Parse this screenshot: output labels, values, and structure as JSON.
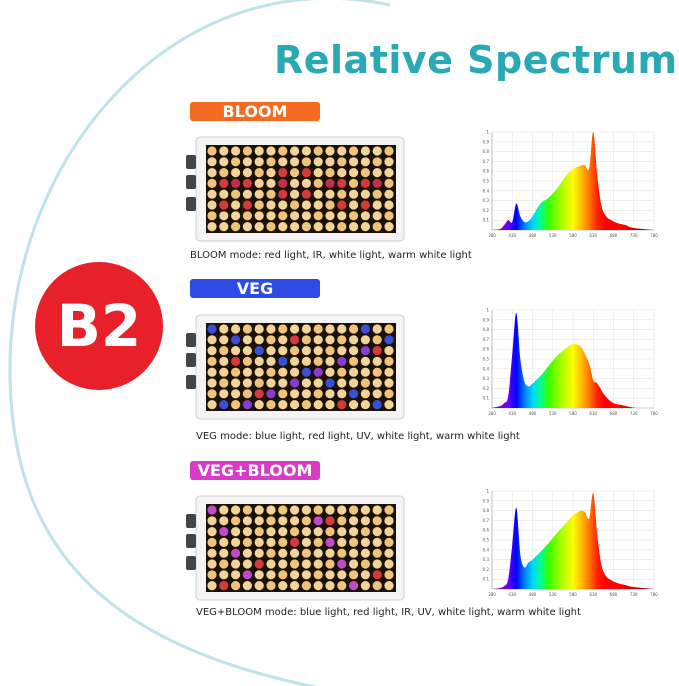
{
  "page": {
    "title": "Relative Spectrum",
    "badge": "B2",
    "accent_color": "#2aa8b3",
    "badge_color": "#e8202a"
  },
  "modes": [
    {
      "key": "bloom",
      "label": "BLOOM",
      "label_color": "#f26b21",
      "caption": "BLOOM mode: red light, IR, white light, warm white light",
      "led_pattern": "bloom"
    },
    {
      "key": "veg",
      "label": "VEG",
      "label_color": "#2f4be6",
      "caption": "VEG mode: blue light, red light, UV, white light, warm white light",
      "led_pattern": "veg"
    },
    {
      "key": "vegbloom",
      "label": "VEG+BLOOM",
      "label_color": "#d93bc9",
      "caption": "VEG+BLOOM mode: blue light, red light, IR, UV, white light, warm white light",
      "led_pattern": "vegbloom"
    }
  ],
  "chart_data": [
    {
      "type": "area",
      "x_ticks": [
        "380",
        "430",
        "480",
        "530",
        "580",
        "630",
        "680",
        "730",
        "780"
      ],
      "y_ticks": [
        "0.1",
        "0.2",
        "0.3",
        "0.4",
        "0.5",
        "0.6",
        "0.7",
        "0.8",
        "0.9",
        "1"
      ],
      "xlim": [
        380,
        780
      ],
      "ylim": [
        0,
        1
      ],
      "grid": true,
      "x": [
        380,
        400,
        410,
        420,
        430,
        440,
        450,
        460,
        470,
        480,
        500,
        520,
        540,
        560,
        580,
        600,
        610,
        620,
        630,
        640,
        650,
        660,
        670,
        690,
        710,
        730,
        780
      ],
      "values": [
        0,
        0.01,
        0.05,
        0.1,
        0.08,
        0.27,
        0.14,
        0.08,
        0.09,
        0.14,
        0.27,
        0.33,
        0.42,
        0.54,
        0.62,
        0.66,
        0.66,
        0.63,
        1.0,
        0.55,
        0.25,
        0.15,
        0.11,
        0.07,
        0.05,
        0.02,
        0
      ]
    },
    {
      "type": "area",
      "x_ticks": [
        "380",
        "430",
        "480",
        "530",
        "580",
        "630",
        "680",
        "730",
        "780"
      ],
      "y_ticks": [
        "0.1",
        "0.2",
        "0.3",
        "0.4",
        "0.5",
        "0.6",
        "0.7",
        "0.8",
        "0.9",
        "1"
      ],
      "xlim": [
        380,
        780
      ],
      "ylim": [
        0,
        1
      ],
      "grid": true,
      "x": [
        380,
        400,
        410,
        420,
        430,
        440,
        450,
        460,
        470,
        480,
        500,
        520,
        540,
        560,
        580,
        600,
        620,
        630,
        640,
        660,
        680,
        700,
        720,
        740,
        780
      ],
      "values": [
        0,
        0.02,
        0.05,
        0.12,
        0.55,
        0.97,
        0.5,
        0.27,
        0.22,
        0.25,
        0.33,
        0.43,
        0.53,
        0.6,
        0.65,
        0.62,
        0.45,
        0.28,
        0.25,
        0.12,
        0.05,
        0.03,
        0.01,
        0,
        0
      ]
    },
    {
      "type": "area",
      "x_ticks": [
        "380",
        "430",
        "480",
        "530",
        "580",
        "630",
        "680",
        "730",
        "780"
      ],
      "y_ticks": [
        "0.1",
        "0.2",
        "0.3",
        "0.4",
        "0.5",
        "0.6",
        "0.7",
        "0.8",
        "0.9",
        "1"
      ],
      "xlim": [
        380,
        780
      ],
      "ylim": [
        0,
        1
      ],
      "grid": true,
      "x": [
        380,
        400,
        410,
        420,
        430,
        440,
        450,
        460,
        470,
        480,
        500,
        520,
        540,
        560,
        580,
        600,
        610,
        620,
        630,
        640,
        650,
        660,
        670,
        690,
        710,
        730,
        780
      ],
      "values": [
        0,
        0.01,
        0.03,
        0.1,
        0.45,
        0.83,
        0.35,
        0.22,
        0.27,
        0.3,
        0.38,
        0.47,
        0.57,
        0.66,
        0.75,
        0.8,
        0.78,
        0.72,
        0.98,
        0.55,
        0.25,
        0.14,
        0.1,
        0.06,
        0.04,
        0.02,
        0
      ]
    }
  ]
}
